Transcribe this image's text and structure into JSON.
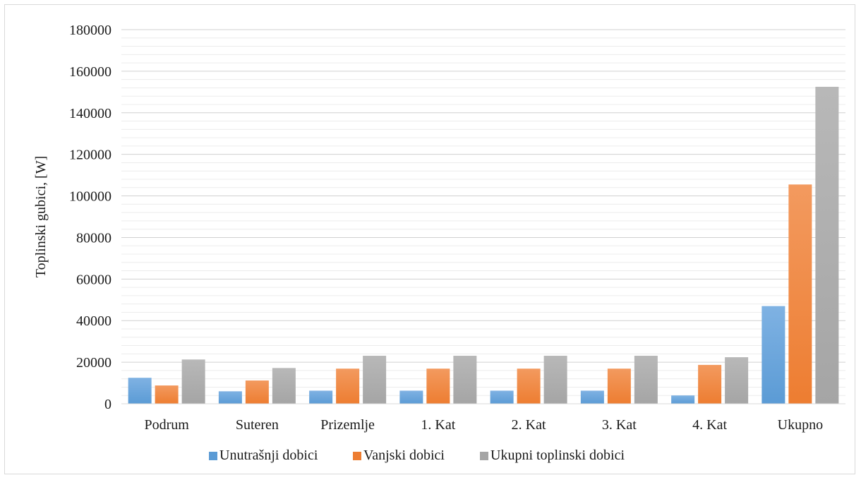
{
  "chart_data": {
    "type": "bar",
    "title": "",
    "xlabel": "",
    "ylabel": "Toplinski gubici, [W]",
    "ylim": [
      0,
      180000
    ],
    "yticks": [
      "0",
      "20000",
      "40000",
      "60000",
      "80000",
      "100000",
      "120000",
      "140000",
      "160000",
      "180000"
    ],
    "grid": true,
    "legend_position": "bottom",
    "categories": [
      "Podrum",
      "Suteren",
      "Prizemlje",
      "1. Kat",
      "2. Kat",
      "3. Kat",
      "4. Kat",
      "Ukupno"
    ],
    "series": [
      {
        "name": "Unutrašnji dobici",
        "color": "#5b9bd5",
        "values": [
          12500,
          6000,
          6300,
          6300,
          6300,
          6300,
          4000,
          47000
        ]
      },
      {
        "name": "Vanjski dobici",
        "color": "#ed7d31",
        "values": [
          8800,
          11200,
          16900,
          16900,
          16900,
          16900,
          18700,
          105500
        ]
      },
      {
        "name": "Ukupni toplinski dobici",
        "color": "#a5a5a5",
        "values": [
          21300,
          17200,
          23100,
          23100,
          23100,
          23100,
          22400,
          152500
        ]
      }
    ]
  }
}
